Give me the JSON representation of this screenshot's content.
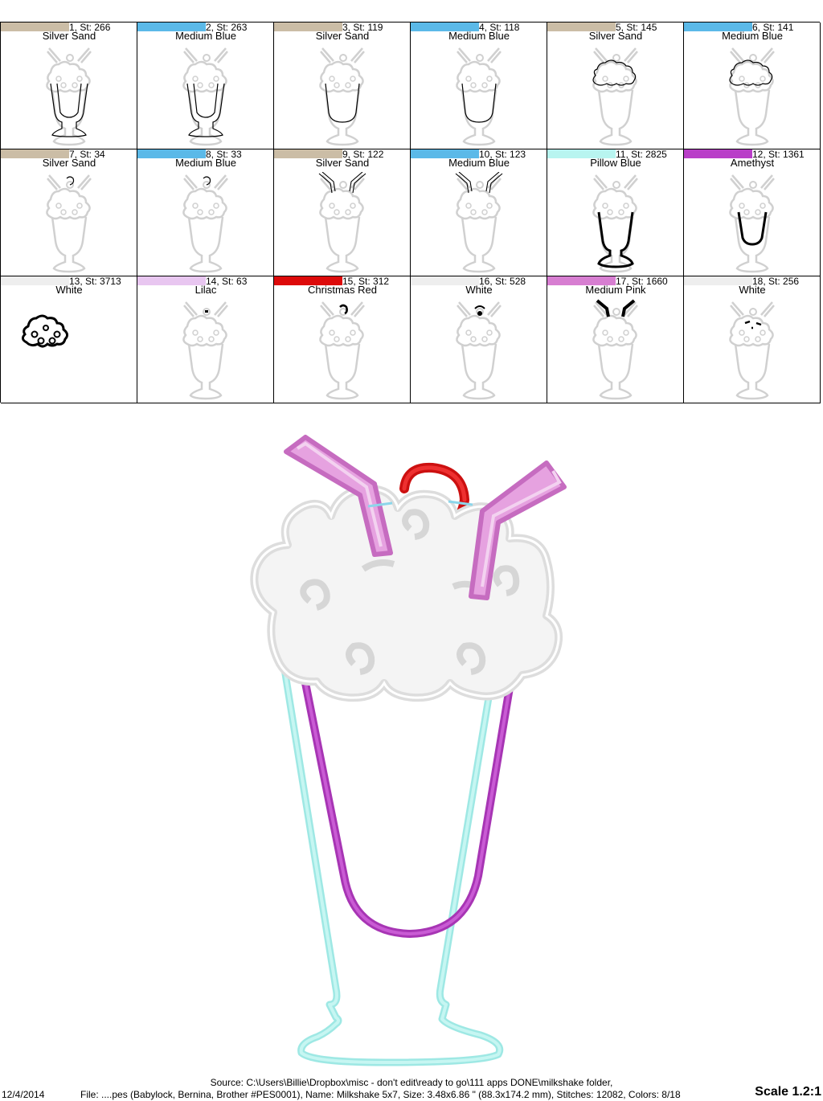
{
  "steps": [
    {
      "label": "1, St: 266",
      "color_name": "Silver Sand",
      "swatch": "#cbbda6"
    },
    {
      "label": "2, St: 263",
      "color_name": "Medium Blue",
      "swatch": "#5bb9e8"
    },
    {
      "label": "3, St: 119",
      "color_name": "Silver Sand",
      "swatch": "#cbbda6"
    },
    {
      "label": "4, St: 118",
      "color_name": "Medium Blue",
      "swatch": "#5bb9e8"
    },
    {
      "label": "5, St: 145",
      "color_name": "Silver Sand",
      "swatch": "#cbbda6"
    },
    {
      "label": "6, St: 141",
      "color_name": "Medium Blue",
      "swatch": "#5bb9e8"
    },
    {
      "label": "7, St: 34",
      "color_name": "Silver Sand",
      "swatch": "#cbbda6"
    },
    {
      "label": "8, St: 33",
      "color_name": "Medium Blue",
      "swatch": "#5bb9e8"
    },
    {
      "label": "9, St: 122",
      "color_name": "Silver Sand",
      "swatch": "#cbbda6"
    },
    {
      "label": "10, St: 123",
      "color_name": "Medium Blue",
      "swatch": "#5bb9e8"
    },
    {
      "label": "11, St: 2825",
      "color_name": "Pillow Blue",
      "swatch": "#b8f5f0"
    },
    {
      "label": "12, St: 1361",
      "color_name": "Amethyst",
      "swatch": "#b93ec8"
    },
    {
      "label": "13, St: 3713",
      "color_name": "White",
      "swatch": "#eeeeee"
    },
    {
      "label": "14, St: 63",
      "color_name": "Lilac",
      "swatch": "#e8c6f0"
    },
    {
      "label": "15, St: 312",
      "color_name": "Christmas Red",
      "swatch": "#dd0a0a"
    },
    {
      "label": "16, St: 528",
      "color_name": "White",
      "swatch": "#eeeeee"
    },
    {
      "label": "17, St: 1660",
      "color_name": "Medium Pink",
      "swatch": "#d77ed1"
    },
    {
      "label": "18, St: 256",
      "color_name": "White",
      "swatch": "#eeeeee"
    }
  ],
  "footer": {
    "source": "Source: C:\\Users\\Billie\\Dropbox\\misc - don't edit\\ready to go\\111 apps DONE\\milkshake folder,",
    "date": "12/4/2014",
    "file": "File: ....pes (Babylock, Bernina, Brother #PES0001), Name: Milkshake 5x7, Size: 3.48x6.86 \" (88.3x174.2 mm), Stitches: 12082, Colors: 8/18",
    "scale": "Scale 1.2:1"
  }
}
